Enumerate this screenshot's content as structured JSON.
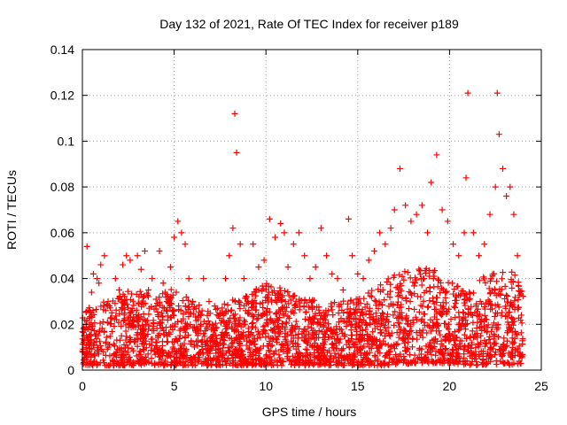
{
  "chart_data": {
    "type": "scatter",
    "title": "Day 132 of 2021, Rate Of TEC Index for receiver p189",
    "xlabel": "GPS time / hours",
    "ylabel": "ROTI / TECUs",
    "xlim": [
      0,
      25
    ],
    "ylim": [
      0,
      0.14
    ],
    "x_ticks": [
      "0",
      "5",
      "10",
      "15",
      "20",
      "25"
    ],
    "y_ticks": [
      "0",
      "0.02",
      "0.04",
      "0.06",
      "0.08",
      "0.1",
      "0.12",
      "0.14"
    ],
    "grid": true,
    "marker": "+",
    "series": [
      {
        "color": "#ff0000",
        "x": [
          0.1,
          0.2,
          0.25,
          0.3,
          0.4,
          0.5,
          0.6,
          0.7,
          0.8,
          0.9,
          1.0,
          1.2,
          1.4,
          1.6,
          1.8,
          2.0,
          2.2,
          2.4,
          2.6,
          2.8,
          3.0,
          3.2,
          3.4,
          3.6,
          3.8,
          4.0,
          4.2,
          4.4,
          4.6,
          4.8,
          5.0,
          5.2,
          5.4,
          5.6,
          5.8,
          6.0,
          6.3,
          6.6,
          6.9,
          7.2,
          7.5,
          7.8,
          8.0,
          8.2,
          8.3,
          8.4,
          8.6,
          8.8,
          9.0,
          9.3,
          9.6,
          9.9,
          10.2,
          10.5,
          10.8,
          11.0,
          11.2,
          11.5,
          11.8,
          12.1,
          12.4,
          12.7,
          13.0,
          13.3,
          13.6,
          13.9,
          14.2,
          14.5,
          14.7,
          15.0,
          15.3,
          15.6,
          15.9,
          16.2,
          16.5,
          16.8,
          17.0,
          17.3,
          17.6,
          17.9,
          18.2,
          18.5,
          18.8,
          19.0,
          19.3,
          19.6,
          19.9,
          20.2,
          20.5,
          20.8,
          20.9,
          21.0,
          21.3,
          21.6,
          21.9,
          22.2,
          22.5,
          22.6,
          22.7,
          22.9,
          23.1,
          23.3,
          23.5,
          23.7
        ],
        "y": [
          0.013,
          0.02,
          0.054,
          0.018,
          0.026,
          0.034,
          0.042,
          0.015,
          0.04,
          0.038,
          0.046,
          0.05,
          0.03,
          0.025,
          0.04,
          0.035,
          0.046,
          0.05,
          0.048,
          0.022,
          0.05,
          0.044,
          0.052,
          0.035,
          0.04,
          0.028,
          0.052,
          0.038,
          0.03,
          0.045,
          0.058,
          0.065,
          0.06,
          0.055,
          0.04,
          0.03,
          0.022,
          0.04,
          0.03,
          0.028,
          0.025,
          0.04,
          0.05,
          0.062,
          0.112,
          0.095,
          0.055,
          0.04,
          0.03,
          0.055,
          0.045,
          0.048,
          0.066,
          0.058,
          0.064,
          0.06,
          0.045,
          0.055,
          0.06,
          0.05,
          0.04,
          0.045,
          0.062,
          0.05,
          0.042,
          0.04,
          0.035,
          0.066,
          0.05,
          0.042,
          0.04,
          0.048,
          0.052,
          0.06,
          0.055,
          0.062,
          0.07,
          0.088,
          0.072,
          0.065,
          0.068,
          0.072,
          0.06,
          0.082,
          0.094,
          0.07,
          0.065,
          0.055,
          0.05,
          0.06,
          0.084,
          0.121,
          0.06,
          0.05,
          0.055,
          0.068,
          0.08,
          0.121,
          0.103,
          0.088,
          0.076,
          0.08,
          0.068,
          0.05
        ]
      }
    ],
    "cloud_band": {
      "x": [
        0,
        1,
        2,
        3,
        4,
        5,
        6,
        7,
        8,
        9,
        10,
        11,
        12,
        13,
        14,
        15,
        16,
        17,
        18,
        19,
        20,
        21,
        22,
        23,
        24
      ],
      "y_low": [
        0.002,
        0.002,
        0.002,
        0.002,
        0.002,
        0.002,
        0.002,
        0.002,
        0.002,
        0.002,
        0.002,
        0.002,
        0.002,
        0.002,
        0.002,
        0.002,
        0.002,
        0.002,
        0.003,
        0.003,
        0.003,
        0.002,
        0.002,
        0.002,
        0.003
      ],
      "y_high": [
        0.026,
        0.03,
        0.033,
        0.036,
        0.032,
        0.036,
        0.03,
        0.026,
        0.03,
        0.034,
        0.038,
        0.036,
        0.032,
        0.03,
        0.03,
        0.032,
        0.036,
        0.042,
        0.044,
        0.046,
        0.04,
        0.034,
        0.042,
        0.046,
        0.038
      ]
    }
  }
}
